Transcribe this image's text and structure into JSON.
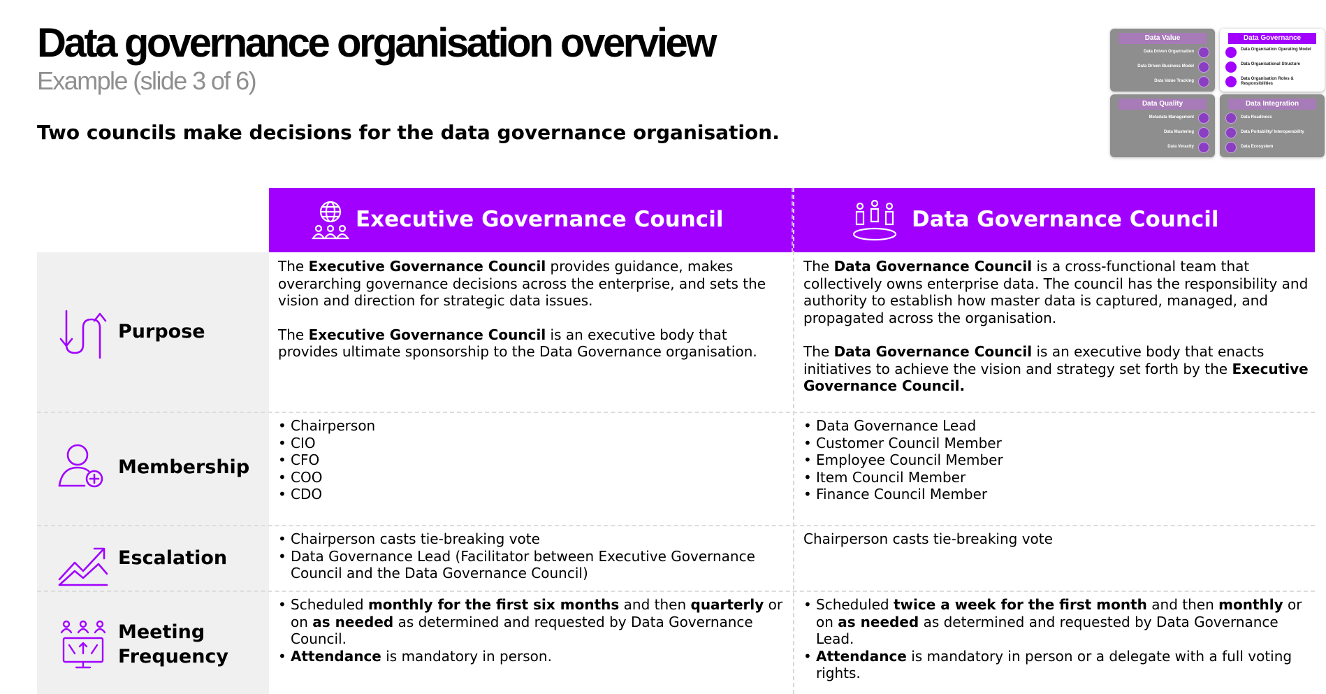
{
  "page": {
    "title": "Data governance organisation overview",
    "subtitle": "Example (slide 3 of 6)",
    "tagline": "Two councils make decisions for the data governance organisation."
  },
  "navigator": {
    "data_value": {
      "label": "Data Value",
      "items": [
        "Data Driven Organisation",
        "Data Driven Business Model",
        "Data Value Tracking"
      ]
    },
    "data_governance": {
      "label": "Data Governance",
      "items": [
        "Data Organisation Operating Model",
        "Data Organisational Structure",
        "Data Organisation Roles & Responsibilities"
      ]
    },
    "data_quality": {
      "label": "Data Quality",
      "items": [
        "Metadata Management",
        "Data Mastering",
        "Data Veracity"
      ]
    },
    "data_integration": {
      "label": "Data Integration",
      "items": [
        "Data Readiness",
        "Data Portability/ Interoperability",
        "Data Ecosystem"
      ]
    }
  },
  "columns": {
    "exec": "Executive Governance Council",
    "dg": "Data Governance Council"
  },
  "rows": {
    "purpose": "Purpose",
    "membership": "Membership",
    "escalation": "Escalation",
    "meeting_1": "Meeting",
    "meeting_2": "Frequency"
  },
  "purpose": {
    "exec_p1": {
      "a": "The ",
      "b": "Executive Governance Council",
      "c": " provides guidance, makes overarching governance decisions across the enterprise, and sets the vision and direction for strategic data issues."
    },
    "exec_p2": {
      "a": "The ",
      "b": "Executive Governance Council",
      "c": " is an executive body that provides ultimate sponsorship to the Data Governance organisation."
    },
    "dg_p1": {
      "a": "The ",
      "b": "Data Governance Council",
      "c": " is a cross-functional team that collectively owns enterprise data. The council has the responsibility and authority to establish how master data is captured, managed, and propagated across the organisation."
    },
    "dg_p2": {
      "a": "The ",
      "b": "Data Governance Council",
      "c": " is an executive body that enacts initiatives to achieve the vision and strategy set forth by the ",
      "d": "Executive Governance Council."
    }
  },
  "membership": {
    "exec": [
      "Chairperson",
      "CIO",
      "CFO",
      "COO",
      "CDO"
    ],
    "dg": [
      "Data Governance Lead",
      "Customer Council Member",
      "Employee Council Member",
      "Item Council Member",
      "Finance Council Member"
    ]
  },
  "escalation": {
    "exec": [
      "Chairperson casts tie-breaking vote",
      "Data Governance Lead (Facilitator between Executive Governance Council and the Data Governance Council)"
    ],
    "dg": "Chairperson casts tie-breaking vote"
  },
  "meeting": {
    "exec_1": {
      "a": "Scheduled ",
      "b": "monthly for the first six months",
      "c": " and then ",
      "d": "quarterly",
      "e": " or on ",
      "f": "as needed",
      "g": " as determined and requested by Data Governance Council."
    },
    "exec_2": {
      "a": "Attendance",
      "b": " is mandatory in person."
    },
    "dg_1": {
      "a": "Scheduled ",
      "b": "twice a week for the first month",
      "c": " and then ",
      "d": "monthly",
      "e": " or on ",
      "f": "as needed",
      "g": " as determined and requested by Data Governance Lead."
    },
    "dg_2": {
      "a": "Attendance",
      "b": " is mandatory in person or a delegate with a full voting rights."
    }
  },
  "colors": {
    "accent": "#a100ff",
    "row_label_bg": "#f0f0f0",
    "subtitle": "#8f8f8f"
  }
}
